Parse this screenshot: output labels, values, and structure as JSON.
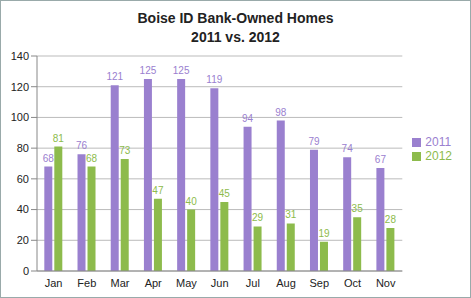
{
  "chart_data": {
    "type": "bar",
    "title": "Boise ID Bank-Owned Homes",
    "subtitle": "2011 vs. 2012",
    "categories": [
      "Jan",
      "Feb",
      "Mar",
      "Apr",
      "May",
      "Jun",
      "Jul",
      "Aug",
      "Sep",
      "Oct",
      "Nov"
    ],
    "series": [
      {
        "name": "2011",
        "color": "#9a80cf",
        "values": [
          68,
          76,
          121,
          125,
          125,
          119,
          94,
          98,
          79,
          74,
          67
        ]
      },
      {
        "name": "2012",
        "color": "#8dbb4c",
        "values": [
          81,
          68,
          73,
          47,
          40,
          45,
          29,
          31,
          19,
          35,
          28
        ]
      }
    ],
    "ylim": [
      0,
      140
    ],
    "yticks": [
      0,
      20,
      40,
      60,
      80,
      100,
      120,
      140
    ],
    "grid": true,
    "legend": "right",
    "data_labels": true
  }
}
